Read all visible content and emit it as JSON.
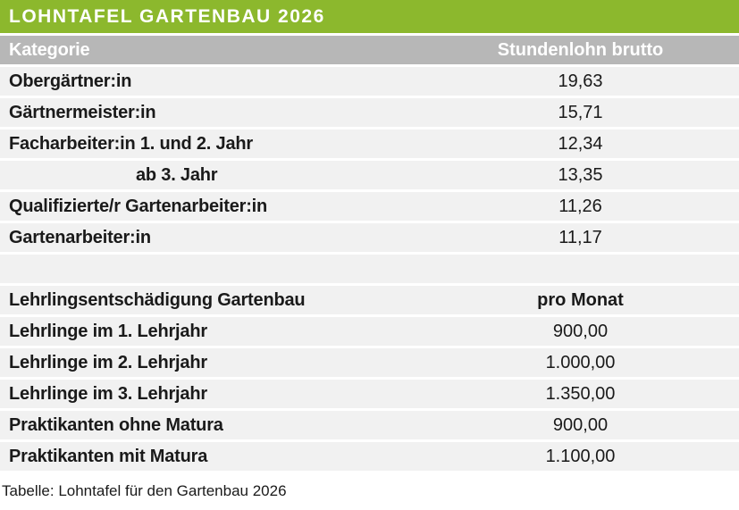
{
  "title": "LOHNTAFEL GARTENBAU 2026",
  "header": {
    "category": "Kategorie",
    "value": "Stundenlohn brutto"
  },
  "rows": [
    {
      "label": "Obergärtner:in",
      "value": "19,63",
      "type": "data"
    },
    {
      "label": "Gärtnermeister:in",
      "value": "15,71",
      "type": "data"
    },
    {
      "label": "Facharbeiter:in 1. und 2. Jahr",
      "value": "12,34",
      "type": "data"
    },
    {
      "label": "ab 3. Jahr",
      "value": "13,35",
      "type": "data-indented"
    },
    {
      "label": "Qualifizierte/r Gartenarbeiter:in",
      "value": "11,26",
      "type": "data"
    },
    {
      "label": "Gartenarbeiter:in",
      "value": "11,17",
      "type": "data"
    },
    {
      "label": "",
      "value": "",
      "type": "spacer"
    },
    {
      "label": "Lehrlingsentschädigung Gartenbau",
      "value": "pro Monat",
      "type": "subheader"
    },
    {
      "label": "Lehrlinge im 1. Lehrjahr",
      "value": "900,00",
      "type": "data"
    },
    {
      "label": "Lehrlinge im 2. Lehrjahr",
      "value": "1.000,00",
      "type": "data"
    },
    {
      "label": "Lehrlinge im 3. Lehrjahr",
      "value": "1.350,00",
      "type": "data"
    },
    {
      "label": "Praktikanten ohne Matura",
      "value": "900,00",
      "type": "data"
    },
    {
      "label": "Praktikanten mit Matura",
      "value": "1.100,00",
      "type": "data"
    }
  ],
  "caption": "Tabelle: Lohntafel für den Gartenbau 2026",
  "colors": {
    "accent_green": "#8cb82d",
    "header_gray": "#b7b7b7",
    "row_background": "#f1f1f1",
    "header_text": "#ffffff",
    "body_text": "#1a1a1a"
  }
}
